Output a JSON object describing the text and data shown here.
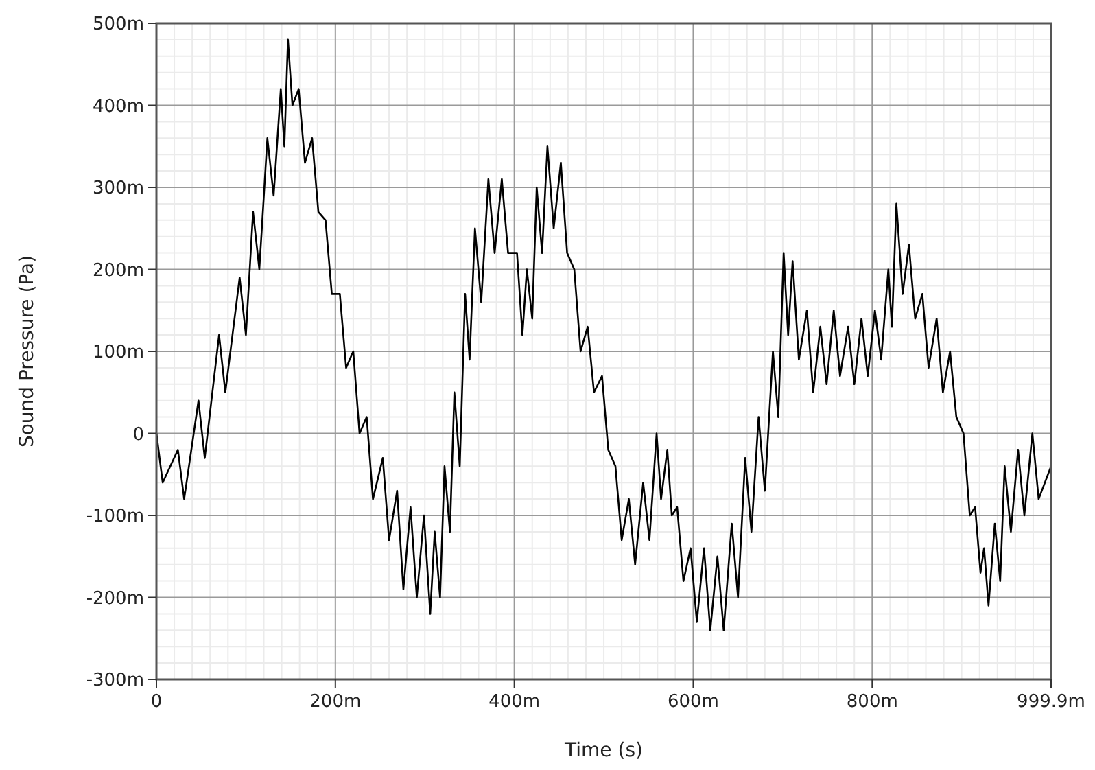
{
  "chart_data": {
    "type": "line",
    "xlabel": "Time (s)",
    "ylabel": "Sound Pressure (Pa)",
    "xlim": [
      0,
      999.9
    ],
    "ylim": [
      -300,
      500
    ],
    "xticks": [
      0,
      {
        "value": 200,
        "label": "200m"
      },
      {
        "value": 400,
        "label": "400m"
      },
      {
        "value": 600,
        "label": "600m"
      },
      {
        "value": 800,
        "label": "800m"
      },
      {
        "value": 999.9,
        "label": "999.9m"
      }
    ],
    "yticks": [
      {
        "value": -300,
        "label": "-300m"
      },
      {
        "value": -200,
        "label": "-200m"
      },
      {
        "value": -100,
        "label": "-100m"
      },
      0,
      {
        "value": 100,
        "label": "100m"
      },
      {
        "value": 200,
        "label": "200m"
      },
      {
        "value": 300,
        "label": "300m"
      },
      {
        "value": 400,
        "label": "400m"
      },
      {
        "value": 500,
        "label": "500m"
      }
    ],
    "grid": true,
    "line_style": "solid",
    "marker": "none",
    "series": [
      {
        "color": "#000000",
        "x": [
          0,
          7,
          24,
          31,
          47,
          54,
          70,
          77,
          93,
          100,
          108,
          115,
          124,
          131,
          139,
          143,
          147,
          152,
          159,
          166,
          174,
          181,
          189,
          196,
          205,
          212,
          220,
          227,
          235,
          242,
          253,
          260,
          269,
          276,
          284,
          291,
          299,
          306,
          311,
          317,
          322,
          328,
          333,
          339,
          345,
          350,
          356,
          363,
          371,
          378,
          386,
          393,
          403,
          409,
          414,
          420,
          425,
          431,
          437,
          444,
          452,
          459,
          467,
          474,
          482,
          489,
          498,
          505,
          513,
          520,
          528,
          535,
          544,
          551,
          559,
          564,
          571,
          576,
          582,
          589,
          597,
          604,
          612,
          619,
          627,
          634,
          643,
          650,
          658,
          665,
          673,
          680,
          689,
          695,
          701,
          706,
          711,
          718,
          727,
          734,
          742,
          749,
          757,
          764,
          773,
          780,
          788,
          795,
          803,
          810,
          818,
          822,
          827,
          834,
          841,
          848,
          856,
          863,
          872,
          879,
          887,
          894,
          902,
          909,
          915,
          921,
          925,
          930,
          937,
          943,
          948,
          955,
          963,
          970,
          979,
          986,
          999.9
        ],
        "values": [
          0,
          -60,
          -20,
          -80,
          40,
          -30,
          120,
          50,
          190,
          120,
          270,
          200,
          360,
          290,
          420,
          350,
          480,
          400,
          420,
          330,
          360,
          270,
          260,
          170,
          170,
          80,
          100,
          0,
          20,
          -80,
          -30,
          -130,
          -70,
          -190,
          -90,
          -200,
          -100,
          -220,
          -120,
          -200,
          -40,
          -120,
          50,
          -40,
          170,
          90,
          250,
          160,
          310,
          220,
          310,
          220,
          220,
          120,
          200,
          140,
          300,
          220,
          350,
          250,
          330,
          220,
          200,
          100,
          130,
          50,
          70,
          -20,
          -40,
          -130,
          -80,
          -160,
          -60,
          -130,
          0,
          -80,
          -20,
          -100,
          -90,
          -180,
          -140,
          -230,
          -140,
          -240,
          -150,
          -240,
          -110,
          -200,
          -30,
          -120,
          20,
          -70,
          100,
          20,
          220,
          120,
          210,
          90,
          150,
          50,
          130,
          60,
          150,
          70,
          130,
          60,
          140,
          70,
          150,
          90,
          200,
          130,
          280,
          170,
          230,
          140,
          170,
          80,
          140,
          50,
          100,
          20,
          0,
          -100,
          -90,
          -170,
          -140,
          -210,
          -110,
          -180,
          -40,
          -120,
          -20,
          -100,
          0,
          -80,
          -40
        ]
      }
    ]
  }
}
